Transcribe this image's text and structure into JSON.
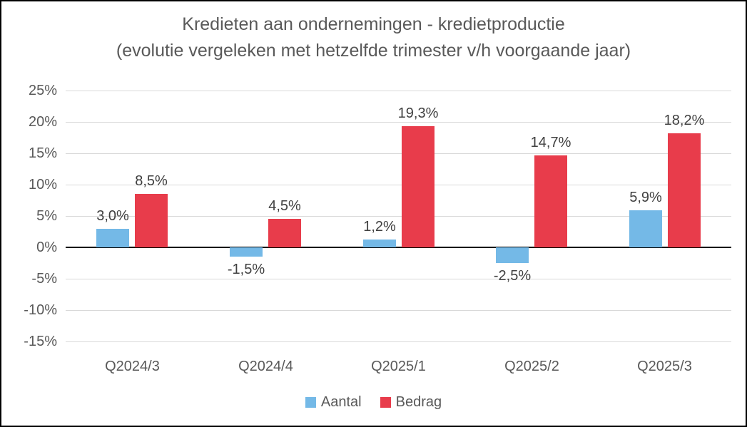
{
  "chart_data": {
    "type": "bar",
    "title": "Kredieten aan ondernemingen - kredietproductie",
    "subtitle": "(evolutie vergeleken met hetzelfde trimester v/h voorgaande jaar)",
    "categories": [
      "Q2024/3",
      "Q2024/4",
      "Q2025/1",
      "Q2025/2",
      "Q2025/3"
    ],
    "series": [
      {
        "name": "Aantal",
        "color": "#74b9e7",
        "values": [
          3.0,
          -1.5,
          1.2,
          -2.5,
          5.9
        ],
        "labels": [
          "3,0%",
          "-1,5%",
          "1,2%",
          "-2,5%",
          "5,9%"
        ]
      },
      {
        "name": "Bedrag",
        "color": "#e83c4b",
        "values": [
          8.5,
          4.5,
          19.3,
          14.7,
          18.2
        ],
        "labels": [
          "8,5%",
          "4,5%",
          "19,3%",
          "14,7%",
          "18,2%"
        ]
      }
    ],
    "xlabel": "",
    "ylabel": "",
    "ylim": [
      -15,
      25
    ],
    "y_tick_step": 5,
    "y_tick_labels": [
      "25%",
      "20%",
      "15%",
      "10%",
      "5%",
      "0%",
      "-5%",
      "-10%",
      "-15%"
    ],
    "grid": true,
    "legend_position": "bottom"
  },
  "colors": {
    "series_aantal": "#74b9e7",
    "series_bedrag": "#e83c4b",
    "gridline": "#d9d9d9",
    "zero_line": "#000000",
    "title_text": "#595959",
    "axis_text": "#595959",
    "data_label_text": "#404040",
    "frame_border": "#000000",
    "background": "#ffffff"
  }
}
